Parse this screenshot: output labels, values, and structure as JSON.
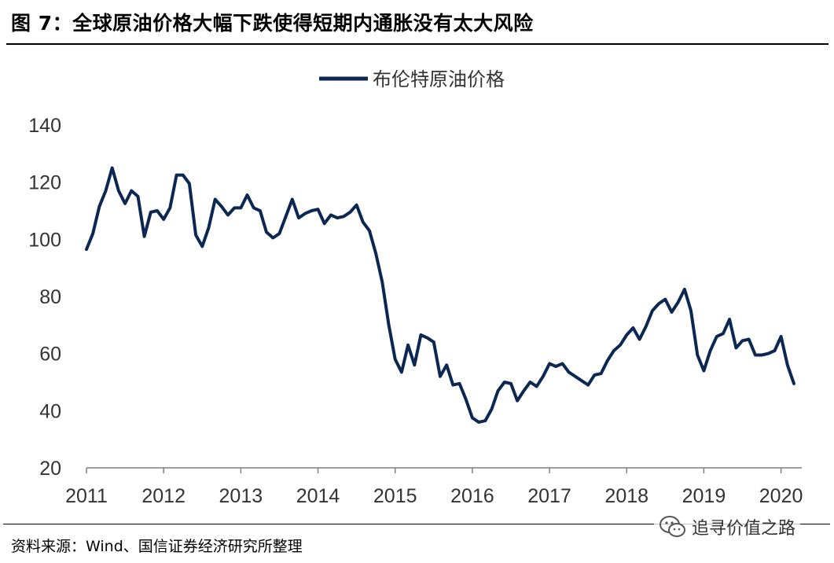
{
  "header": {
    "title": "图 7：全球原油价格大幅下跌使得短期内通胀没有太大风险"
  },
  "footer": {
    "source": "资料来源：Wind、国信证券经济研究所整理",
    "watermark": "追寻价值之路",
    "watermark_icon": "wechat-icon"
  },
  "colors": {
    "series": "#0b2752",
    "rule": "#000000",
    "axis": "#7f7f7f"
  },
  "chart_data": {
    "type": "line",
    "title": "",
    "xlabel": "",
    "ylabel": "",
    "ylim": [
      20,
      140
    ],
    "yticks": [
      20,
      40,
      60,
      80,
      100,
      120,
      140
    ],
    "xticks": [
      2011,
      2012,
      2013,
      2014,
      2015,
      2016,
      2017,
      2018,
      2019,
      2020
    ],
    "xlim": [
      2011,
      2020.167
    ],
    "grid": false,
    "legend": "top-center",
    "series": [
      {
        "name": "布伦特原油价格",
        "x": [
          2011.0,
          2011.083,
          2011.167,
          2011.25,
          2011.333,
          2011.417,
          2011.5,
          2011.583,
          2011.667,
          2011.75,
          2011.833,
          2011.917,
          2012.0,
          2012.083,
          2012.167,
          2012.25,
          2012.333,
          2012.417,
          2012.5,
          2012.583,
          2012.667,
          2012.75,
          2012.833,
          2012.917,
          2013.0,
          2013.083,
          2013.167,
          2013.25,
          2013.333,
          2013.417,
          2013.5,
          2013.583,
          2013.667,
          2013.75,
          2013.833,
          2013.917,
          2014.0,
          2014.083,
          2014.167,
          2014.25,
          2014.333,
          2014.417,
          2014.5,
          2014.583,
          2014.667,
          2014.75,
          2014.833,
          2014.917,
          2015.0,
          2015.083,
          2015.167,
          2015.25,
          2015.333,
          2015.417,
          2015.5,
          2015.583,
          2015.667,
          2015.75,
          2015.833,
          2015.917,
          2016.0,
          2016.083,
          2016.167,
          2016.25,
          2016.333,
          2016.417,
          2016.5,
          2016.583,
          2016.667,
          2016.75,
          2016.833,
          2016.917,
          2017.0,
          2017.083,
          2017.167,
          2017.25,
          2017.333,
          2017.417,
          2017.5,
          2017.583,
          2017.667,
          2017.75,
          2017.833,
          2017.917,
          2018.0,
          2018.083,
          2018.167,
          2018.25,
          2018.333,
          2018.417,
          2018.5,
          2018.583,
          2018.667,
          2018.75,
          2018.833,
          2018.917,
          2019.0,
          2019.083,
          2019.167,
          2019.25,
          2019.333,
          2019.417,
          2019.5,
          2019.583,
          2019.667,
          2019.75,
          2019.833,
          2019.917,
          2020.0,
          2020.083,
          2020.167
        ],
        "values": [
          96.5,
          102,
          111.5,
          117,
          125,
          117,
          112.5,
          117,
          115,
          101,
          109.5,
          110,
          107,
          111,
          122.5,
          122.5,
          119.5,
          101.5,
          97.5,
          104,
          114,
          111.5,
          108.5,
          111,
          111,
          115.5,
          111,
          110,
          102.5,
          100.5,
          102,
          108,
          114,
          107.5,
          109,
          110,
          110.5,
          105.5,
          108.5,
          107.5,
          108,
          109.5,
          112,
          106,
          103,
          95,
          85,
          70,
          58,
          53.5,
          63,
          56,
          66.5,
          65.5,
          64,
          52,
          56,
          49,
          49.5,
          44,
          37.5,
          36,
          36.5,
          40.5,
          47,
          50,
          49.5,
          43.5,
          47,
          50,
          48.5,
          52,
          56.5,
          55.5,
          56.5,
          53.5,
          52,
          50.5,
          49,
          52.5,
          53,
          57.5,
          61,
          63,
          66.5,
          69,
          65,
          69.5,
          75,
          77.5,
          79,
          74.5,
          78,
          82.5,
          75,
          59.5,
          54,
          61,
          66,
          67,
          72,
          62,
          64.5,
          65,
          59.5,
          59.5,
          60,
          61,
          66,
          56,
          49.5
        ]
      }
    ]
  }
}
